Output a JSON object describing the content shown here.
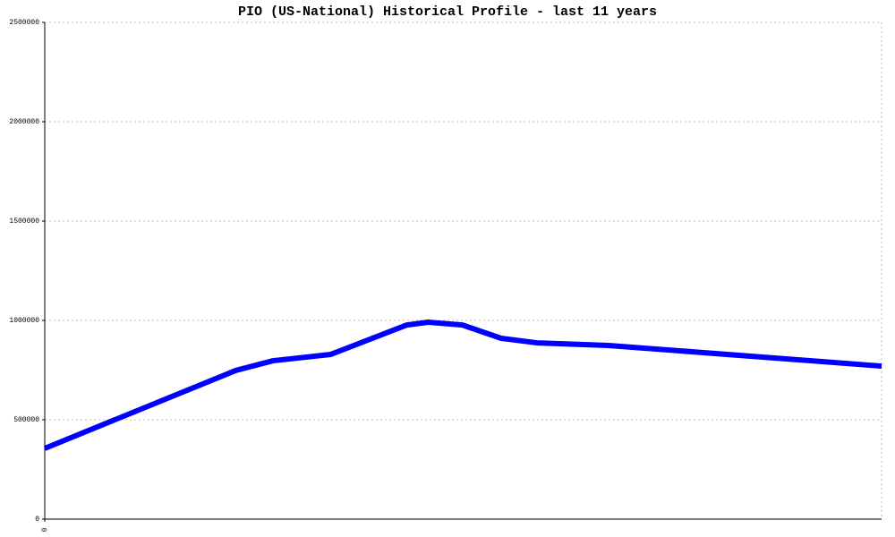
{
  "chart_data": {
    "type": "line",
    "title": "PIO (US-National) Historical Profile - last 11 years",
    "x": [
      0,
      2.51,
      3.0,
      3.76,
      4.76,
      5.04,
      5.49,
      6.0,
      6.47,
      7.41,
      11
    ],
    "series": [
      {
        "color": "#0000ff",
        "values": [
          356000,
          748000,
          797000,
          829000,
          977000,
          991000,
          977000,
          910000,
          887000,
          874000,
          770000
        ]
      }
    ],
    "xlim": [
      0,
      11
    ],
    "xticks": [
      0
    ],
    "ylim": [
      0,
      2500000
    ],
    "yticks": [
      0,
      500000,
      1000000,
      1500000,
      2000000,
      2500000
    ],
    "grid": true
  }
}
